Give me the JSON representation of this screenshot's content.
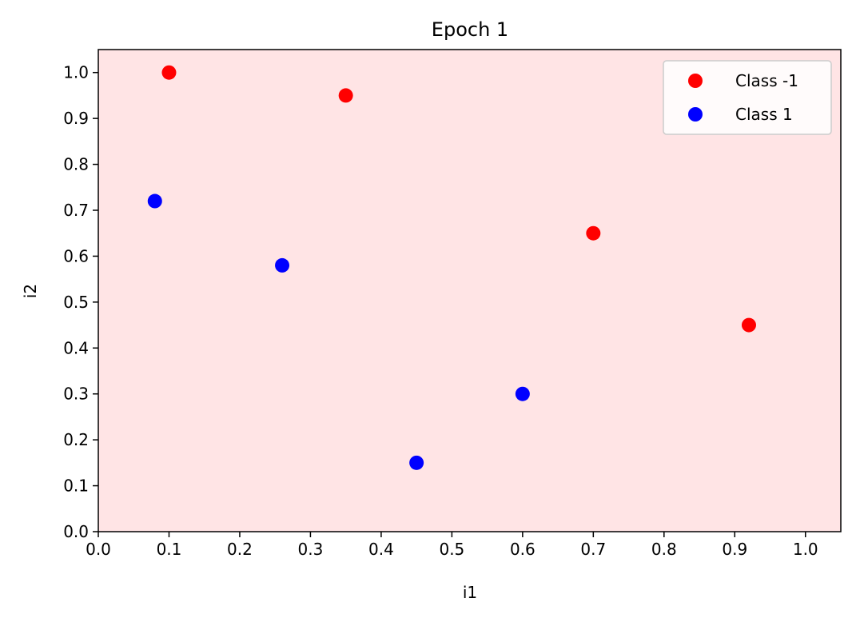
{
  "chart_data": {
    "type": "scatter",
    "title": "Epoch 1",
    "xlabel": "i1",
    "ylabel": "i2",
    "xlim": [
      0.0,
      1.05
    ],
    "ylim": [
      0.0,
      1.05
    ],
    "xticks": [
      "0.0",
      "0.1",
      "0.2",
      "0.3",
      "0.4",
      "0.5",
      "0.6",
      "0.7",
      "0.8",
      "0.9",
      "1.0"
    ],
    "yticks": [
      "0.0",
      "0.1",
      "0.2",
      "0.3",
      "0.4",
      "0.5",
      "0.6",
      "0.7",
      "0.8",
      "0.9",
      "1.0"
    ],
    "grid": false,
    "background_color": "#ffe4e5",
    "legend_position": "top-right",
    "series": [
      {
        "name": "Class -1",
        "color": "#ff0000",
        "points": [
          {
            "x": 0.1,
            "y": 1.0
          },
          {
            "x": 0.35,
            "y": 0.95
          },
          {
            "x": 0.7,
            "y": 0.65
          },
          {
            "x": 0.92,
            "y": 0.45
          }
        ]
      },
      {
        "name": "Class 1",
        "color": "#0000ff",
        "points": [
          {
            "x": 0.08,
            "y": 0.72
          },
          {
            "x": 0.26,
            "y": 0.58
          },
          {
            "x": 0.45,
            "y": 0.15
          },
          {
            "x": 0.6,
            "y": 0.3
          }
        ]
      }
    ]
  }
}
